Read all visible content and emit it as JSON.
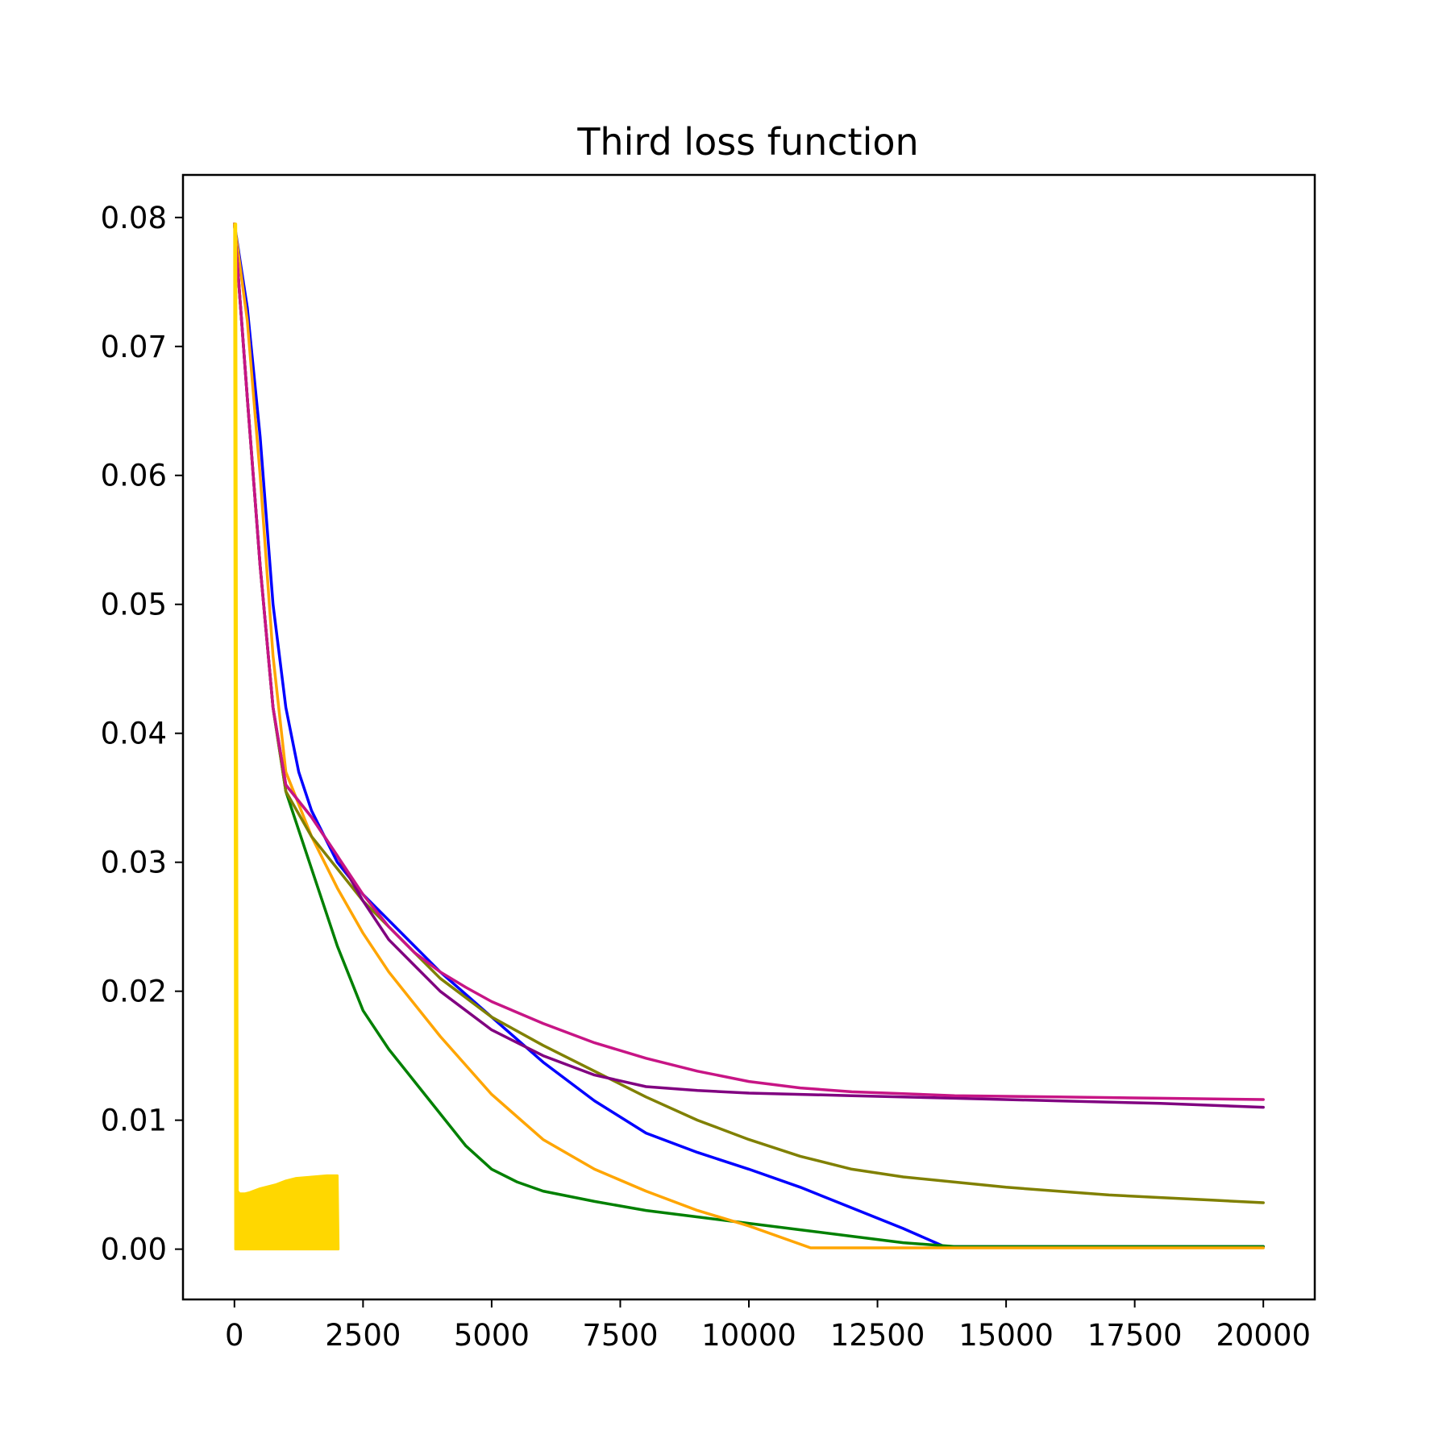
{
  "chart_data": {
    "type": "line",
    "title": "Third loss function",
    "xlabel": "",
    "ylabel": "",
    "xlim": [
      -1000,
      21000
    ],
    "ylim": [
      -0.0039,
      0.0833
    ],
    "xticks": [
      0,
      2500,
      5000,
      7500,
      10000,
      12500,
      15000,
      17500,
      20000
    ],
    "xtick_labels": [
      "0",
      "2500",
      "5000",
      "7500",
      "10000",
      "12500",
      "15000",
      "17500",
      "20000"
    ],
    "yticks": [
      0.0,
      0.01,
      0.02,
      0.03,
      0.04,
      0.05,
      0.06,
      0.07,
      0.08
    ],
    "ytick_labels": [
      "0.00",
      "0.01",
      "0.02",
      "0.03",
      "0.04",
      "0.05",
      "0.06",
      "0.07",
      "0.08"
    ],
    "grid": false,
    "legend": false,
    "series": [
      {
        "color": "#0000ff",
        "x": [
          0,
          250,
          500,
          750,
          1000,
          1250,
          1500,
          2000,
          2500,
          3000,
          4000,
          5000,
          6000,
          7000,
          8000,
          9000,
          10000,
          11000,
          12000,
          13000,
          13800,
          15000,
          17000,
          20000
        ],
        "y": [
          0.0795,
          0.073,
          0.063,
          0.05,
          0.042,
          0.037,
          0.034,
          0.03,
          0.0275,
          0.0255,
          0.0215,
          0.018,
          0.0145,
          0.0115,
          0.009,
          0.0075,
          0.0062,
          0.0048,
          0.0032,
          0.0016,
          0.0002,
          0.0002,
          0.0002,
          0.0002
        ]
      },
      {
        "color": "#008000",
        "x": [
          0,
          250,
          500,
          750,
          1000,
          1500,
          2000,
          2500,
          3000,
          3500,
          4000,
          4500,
          5000,
          5500,
          6000,
          7000,
          8000,
          9000,
          10000,
          11000,
          12000,
          13000,
          14000,
          16000,
          18000,
          20000
        ],
        "y": [
          0.0795,
          0.066,
          0.053,
          0.042,
          0.0355,
          0.0295,
          0.0235,
          0.0185,
          0.0155,
          0.013,
          0.0105,
          0.008,
          0.0062,
          0.0052,
          0.0045,
          0.0037,
          0.003,
          0.0025,
          0.002,
          0.0015,
          0.001,
          0.0005,
          0.0002,
          0.0002,
          0.0002,
          0.0002
        ]
      },
      {
        "color": "#ffa500",
        "x": [
          0,
          250,
          500,
          750,
          1000,
          1500,
          2000,
          2500,
          3000,
          4000,
          5000,
          6000,
          7000,
          8000,
          9000,
          10000,
          11200,
          12000,
          14000,
          16000,
          18000,
          20000
        ],
        "y": [
          0.0795,
          0.072,
          0.06,
          0.046,
          0.037,
          0.032,
          0.028,
          0.0245,
          0.0215,
          0.0165,
          0.012,
          0.0085,
          0.0062,
          0.0045,
          0.003,
          0.0018,
          0.0001,
          0.0001,
          0.0001,
          0.0001,
          0.0001,
          0.0001
        ]
      },
      {
        "color": "#808000",
        "x": [
          0,
          250,
          500,
          750,
          1000,
          1500,
          2000,
          2500,
          3000,
          4000,
          5000,
          6000,
          7000,
          8000,
          9000,
          10000,
          11000,
          12000,
          13000,
          14000,
          15000,
          16000,
          17000,
          18000,
          19000,
          20000
        ],
        "y": [
          0.0795,
          0.066,
          0.053,
          0.042,
          0.0355,
          0.032,
          0.0295,
          0.027,
          0.025,
          0.021,
          0.018,
          0.0158,
          0.0138,
          0.0118,
          0.01,
          0.0085,
          0.0072,
          0.0062,
          0.0056,
          0.0052,
          0.0048,
          0.0045,
          0.0042,
          0.004,
          0.0038,
          0.0036
        ]
      },
      {
        "color": "#800080",
        "x": [
          0,
          250,
          500,
          750,
          1000,
          1500,
          2000,
          2500,
          3000,
          4000,
          5000,
          6000,
          7000,
          8000,
          9000,
          10000,
          11000,
          12000,
          14000,
          16000,
          18000,
          20000
        ],
        "y": [
          0.0795,
          0.066,
          0.053,
          0.042,
          0.036,
          0.0335,
          0.0305,
          0.027,
          0.024,
          0.02,
          0.017,
          0.015,
          0.0135,
          0.0126,
          0.0123,
          0.0121,
          0.012,
          0.0119,
          0.0117,
          0.0115,
          0.0113,
          0.011
        ]
      },
      {
        "color": "#c71585",
        "x": [
          0,
          250,
          500,
          750,
          1000,
          1500,
          2000,
          2500,
          3000,
          3500,
          4000,
          4500,
          5000,
          6000,
          7000,
          8000,
          9000,
          10000,
          11000,
          12000,
          14000,
          16000,
          18000,
          20000
        ],
        "y": [
          0.0795,
          0.066,
          0.053,
          0.042,
          0.036,
          0.0335,
          0.0305,
          0.0275,
          0.025,
          0.023,
          0.0215,
          0.0203,
          0.0192,
          0.0175,
          0.016,
          0.0148,
          0.0138,
          0.013,
          0.0125,
          0.0122,
          0.0119,
          0.0118,
          0.0117,
          0.0116
        ]
      },
      {
        "color": "#ffd700",
        "x": [
          0,
          30,
          60,
          100,
          200,
          300,
          500,
          800,
          1000,
          1200,
          1500,
          1800,
          2000,
          2020
        ],
        "y": [
          0.0795,
          0.0795,
          0.0045,
          0.0043,
          0.0043,
          0.0044,
          0.0047,
          0.005,
          0.0053,
          0.0055,
          0.0056,
          0.0057,
          0.0057,
          0.0
        ],
        "band_low": 0.0
      }
    ]
  }
}
